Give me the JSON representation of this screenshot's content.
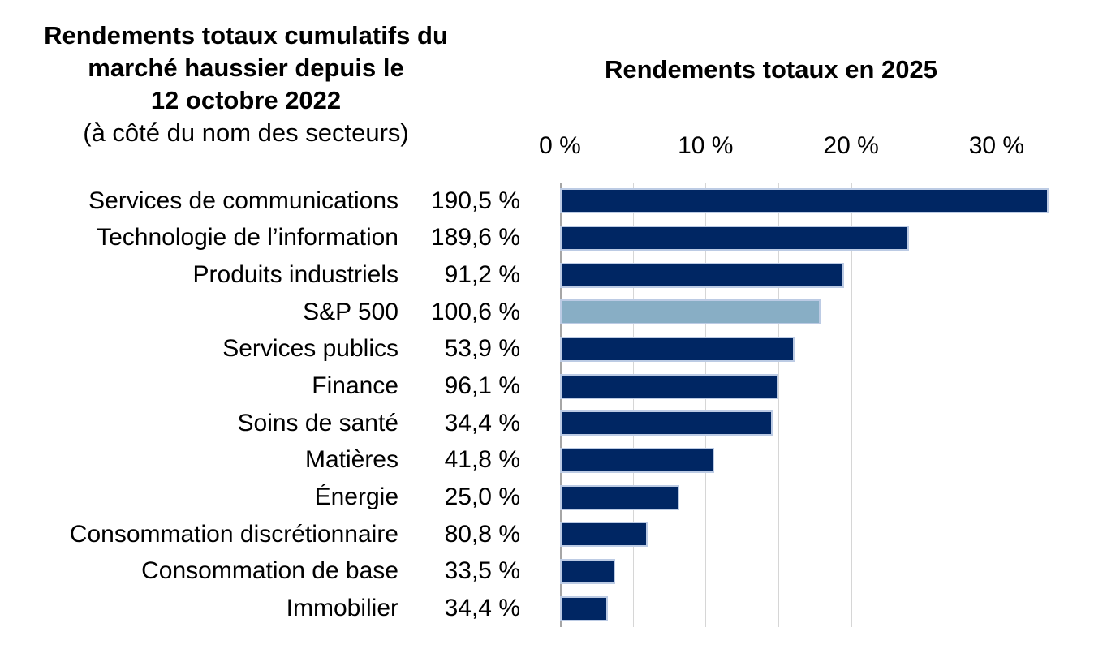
{
  "left_title": {
    "line1": "Rendements totaux cumulatifs du",
    "line2": "marché haussier depuis le",
    "line3": "12 octobre 2022",
    "subtitle": "(à côté du nom des secteurs)"
  },
  "chart_title": "Rendements totaux en 2025",
  "colors": {
    "bar": "#002663",
    "bar_highlight": "#88aec5",
    "bar_border": "#bccbe4",
    "gridline": "#d6d6d6",
    "axis_line": "#a6a6a6",
    "text": "#000000"
  },
  "chart_data": {
    "type": "bar",
    "orientation": "horizontal",
    "title": "Rendements totaux en 2025",
    "categories": [
      "Services de communications",
      "Technologie de l’information",
      "Produits industriels",
      "S&P 500",
      "Services publics",
      "Finance",
      "Soins de santé",
      "Matières",
      "Énergie",
      "Consommation discrétionnaire",
      "Consommation de base",
      "Immobilier"
    ],
    "cumulative_labels": [
      "190,5 %",
      "189,6 %",
      "91,2 %",
      "100,6 %",
      "53,9 %",
      "96,1 %",
      "34,4 %",
      "41,8 %",
      "25,0 %",
      "80,8 %",
      "33,5 %",
      "34,4 %"
    ],
    "series": [
      {
        "name": "Rendements totaux en 2025",
        "values": [
          33.6,
          24.0,
          19.5,
          17.9,
          16.1,
          15.0,
          14.6,
          10.6,
          8.2,
          6.0,
          3.8,
          3.3
        ]
      }
    ],
    "highlight_category": "S&P 500",
    "highlight_index": 3,
    "x_ticks": [
      {
        "value": 0,
        "label": "0 %"
      },
      {
        "value": 10,
        "label": "10 %"
      },
      {
        "value": 20,
        "label": "20 %"
      },
      {
        "value": 30,
        "label": "30 %"
      }
    ],
    "xlim": [
      0,
      36.1
    ],
    "gridline_step": 5,
    "grid": true,
    "legend": false
  }
}
